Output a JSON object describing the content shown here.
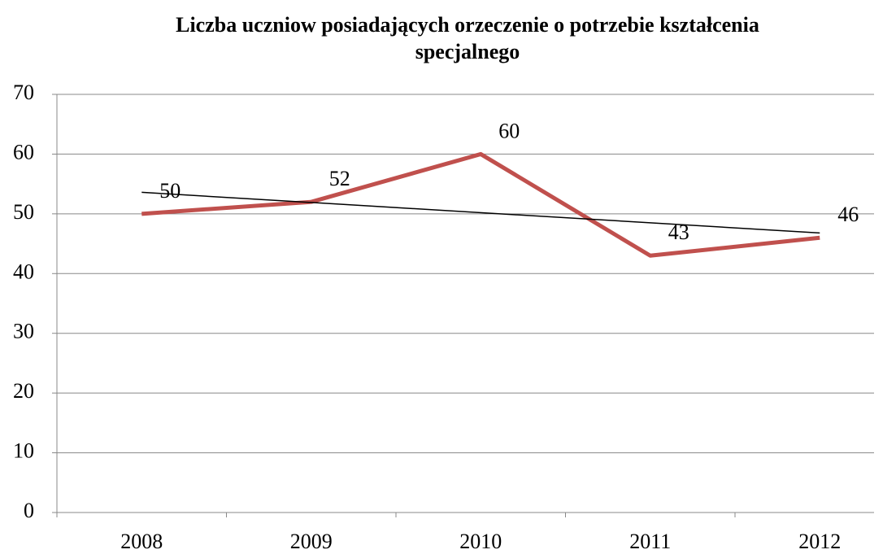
{
  "chart_data": {
    "type": "line",
    "title": "Liczba uczniow posiadających orzeczenie o potrzebie kształcenia specjalnego",
    "categories": [
      "2008",
      "2009",
      "2010",
      "2011",
      "2012"
    ],
    "series": [
      {
        "color": "#c0504d",
        "values": [
          50,
          52,
          60,
          43,
          46
        ]
      }
    ],
    "ylim": [
      0,
      70
    ],
    "yticks": [
      0,
      10,
      20,
      30,
      40,
      50,
      60,
      70
    ],
    "grid": true,
    "trendline": true
  }
}
